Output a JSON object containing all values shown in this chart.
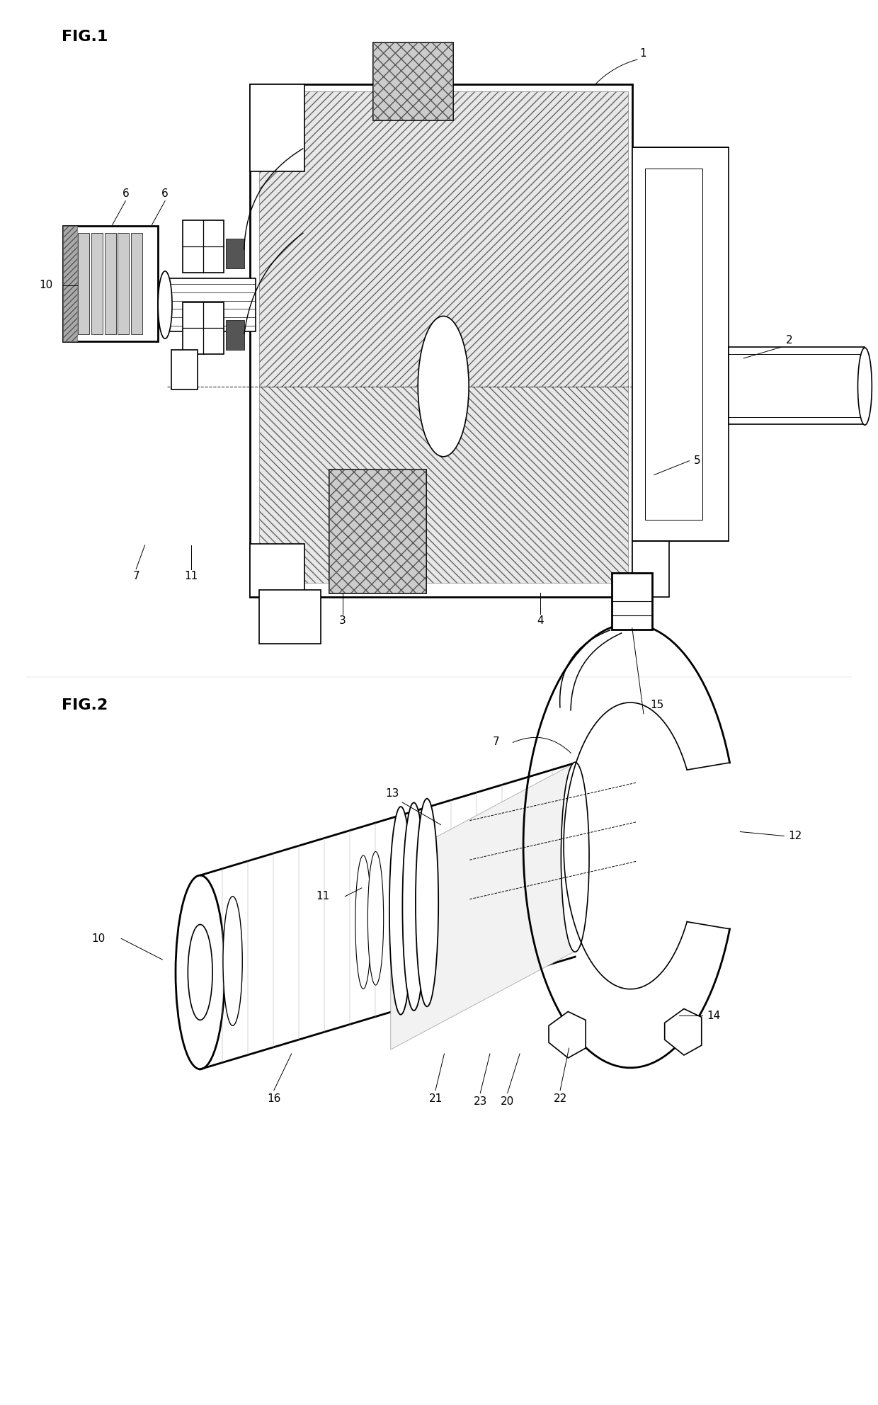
{
  "background_color": "#ffffff",
  "fig_width": 12.4,
  "fig_height": 19.84,
  "fig1_label": "FIG.1",
  "fig2_label": "FIG.2",
  "line_color": "#000000",
  "linewidth": 1.2,
  "thin_linewidth": 0.7,
  "thick_linewidth": 2.0,
  "annotation_fontsize": 11,
  "title_fontsize": 16
}
